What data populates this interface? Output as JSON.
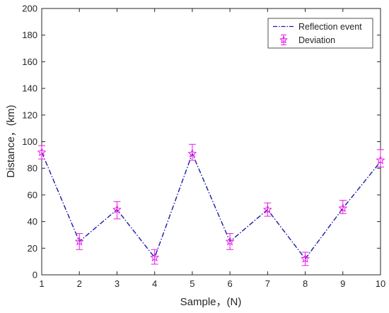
{
  "chart_data": {
    "type": "line",
    "xlabel": "Sample，(N)",
    "ylabel": "Distance，(km)",
    "xlim": [
      1,
      10
    ],
    "ylim": [
      0,
      200
    ],
    "x_ticks": [
      "1",
      "2",
      "3",
      "4",
      "5",
      "6",
      "7",
      "8",
      "9",
      "10"
    ],
    "y_ticks": [
      "0",
      "20",
      "40",
      "60",
      "80",
      "100",
      "120",
      "140",
      "160",
      "180",
      "200"
    ],
    "grid": false,
    "legend_position": "top-right",
    "x": [
      1,
      2,
      3,
      4,
      5,
      6,
      7,
      8,
      9,
      10
    ],
    "series": [
      {
        "name": "Reflection event",
        "style": "dash-dot line",
        "color": "#1a1aa6",
        "values": [
          92,
          25,
          49,
          13,
          91,
          25,
          49,
          12,
          50,
          85
        ]
      },
      {
        "name": "Deviation",
        "style": "star markers with error bars",
        "color": "#e619e6",
        "values": [
          92,
          25,
          49,
          13,
          91,
          25,
          49,
          12,
          50,
          86
        ],
        "error_low": [
          87,
          19,
          42,
          8,
          86,
          19,
          44,
          7,
          46,
          81
        ],
        "error_high": [
          97,
          31,
          55,
          19,
          98,
          31,
          54,
          17,
          56,
          94
        ]
      }
    ]
  }
}
